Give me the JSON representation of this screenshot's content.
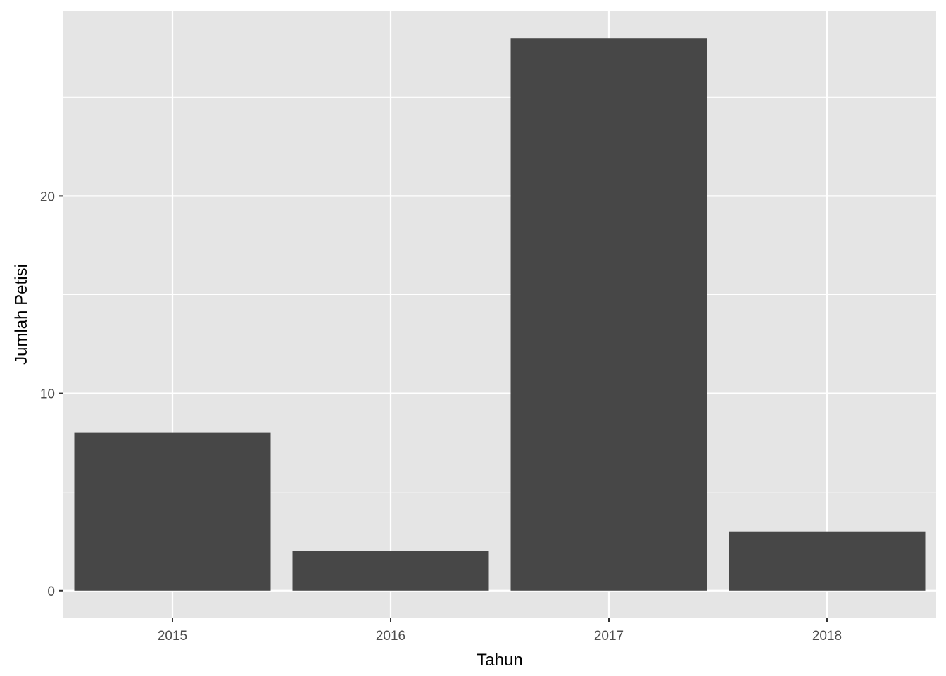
{
  "chart_data": {
    "type": "bar",
    "categories": [
      "2015",
      "2016",
      "2017",
      "2018"
    ],
    "values": [
      8,
      2,
      28,
      3
    ],
    "title": "",
    "xlabel": "Tahun",
    "ylabel": "Jumlah Petisi",
    "ylim": [
      -1.4,
      29.4
    ],
    "yticks": [
      0,
      10,
      20
    ],
    "grid": true,
    "legend": "none",
    "colors": {
      "bar": "#474747",
      "panel": "#e5e5e5",
      "grid": "#ffffff",
      "tick_text": "#4d4d4d",
      "axis_text": "#000000"
    }
  }
}
